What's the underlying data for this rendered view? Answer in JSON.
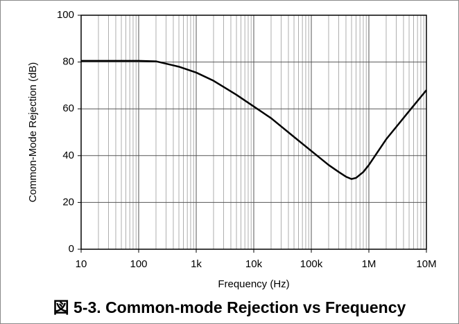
{
  "chart_data": {
    "type": "line",
    "caption": "図 5-3. Common-mode Rejection vs Frequency",
    "x_label": "Frequency (Hz)",
    "y_label": "Common-Mode Rejection (dB)",
    "log_x": true,
    "grid": true,
    "minor_grid": true,
    "xlim": [
      10,
      10000000
    ],
    "ylim": [
      0,
      100
    ],
    "xticks": [
      10,
      100,
      {
        "value": 1000,
        "label": "1k"
      },
      {
        "value": 10000,
        "label": "10k"
      },
      {
        "value": 100000,
        "label": "100k"
      },
      {
        "value": 1000000,
        "label": "1M"
      },
      {
        "value": 10000000,
        "label": "10M"
      }
    ],
    "yticks": [
      0,
      20,
      40,
      60,
      80,
      100
    ],
    "x": [
      10,
      100,
      200,
      500,
      1000,
      2000,
      5000,
      10000,
      20000,
      50000,
      100000,
      200000,
      300000,
      400000,
      500000,
      600000,
      800000,
      1000000,
      2000000,
      5000000,
      10000000
    ],
    "series": [
      {
        "color": "#000000",
        "values": [
          80.5,
          80.5,
          80.3,
          78,
          75.5,
          72,
          66,
          61,
          56,
          48,
          42,
          36,
          33,
          31,
          30,
          30.5,
          33,
          36,
          47,
          59,
          68
        ]
      }
    ]
  }
}
